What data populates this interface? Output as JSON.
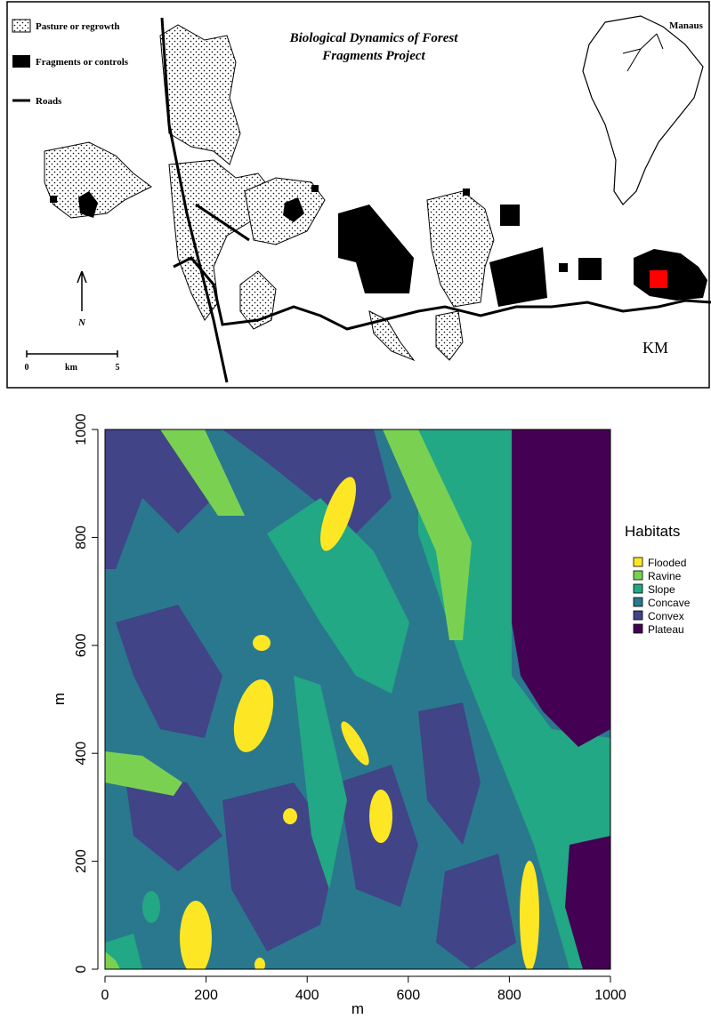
{
  "top_map": {
    "legend": [
      {
        "label": "Pasture or regrowth"
      },
      {
        "label": "Fragments or controls"
      },
      {
        "label": "Roads"
      }
    ],
    "title": [
      "Biological Dynamics of Forest",
      "Fragments Project"
    ],
    "inset_label": "Manaus",
    "north": "N",
    "scale_labels": [
      "0",
      "km",
      "5"
    ],
    "site_label": "KM"
  },
  "habitat_map": {
    "xlabel": "m",
    "ylabel": "m",
    "xlim": [
      0,
      1000
    ],
    "ylim": [
      0,
      1000
    ],
    "xticks": [
      0,
      200,
      400,
      600,
      800,
      1000
    ],
    "yticks": [
      0,
      200,
      400,
      600,
      800,
      1000
    ],
    "legend_title": "Habitats",
    "classes": [
      {
        "name": "Flooded",
        "color": "#fde725"
      },
      {
        "name": "Ravine",
        "color": "#7ad151"
      },
      {
        "name": "Slope",
        "color": "#22a884"
      },
      {
        "name": "Concave",
        "color": "#2a788e"
      },
      {
        "name": "Convex",
        "color": "#414487"
      },
      {
        "name": "Plateau",
        "color": "#440154"
      }
    ]
  }
}
